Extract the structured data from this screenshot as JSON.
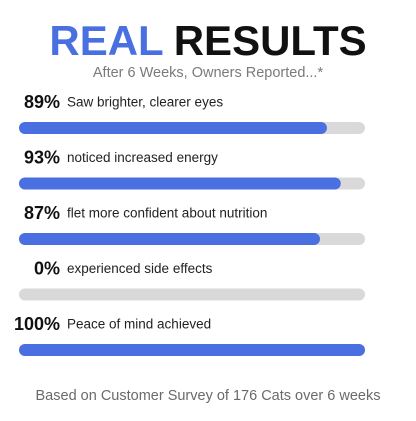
{
  "chart_data": {
    "type": "bar",
    "orientation": "horizontal",
    "title": [
      "REAL",
      "RESULTS"
    ],
    "title_colors": [
      "#4a6fe0",
      "#111111"
    ],
    "subtitle": "After 6 Weeks, Owners Reported...*",
    "categories": [
      "Saw brighter, clearer eyes",
      "noticed increased energy",
      "flet more confident about nutrition",
      "experienced side effects",
      "Peace of mind achieved"
    ],
    "values": [
      89,
      93,
      87,
      0,
      100
    ],
    "value_labels": [
      "89%",
      "93%",
      "87%",
      "0%",
      "100%"
    ],
    "xlim": [
      0,
      100
    ],
    "color": "#4a6fe0",
    "track_color": "#d9d9d9",
    "footnote": "Based on Customer Survey of 176 Cats over 6 weeks"
  }
}
